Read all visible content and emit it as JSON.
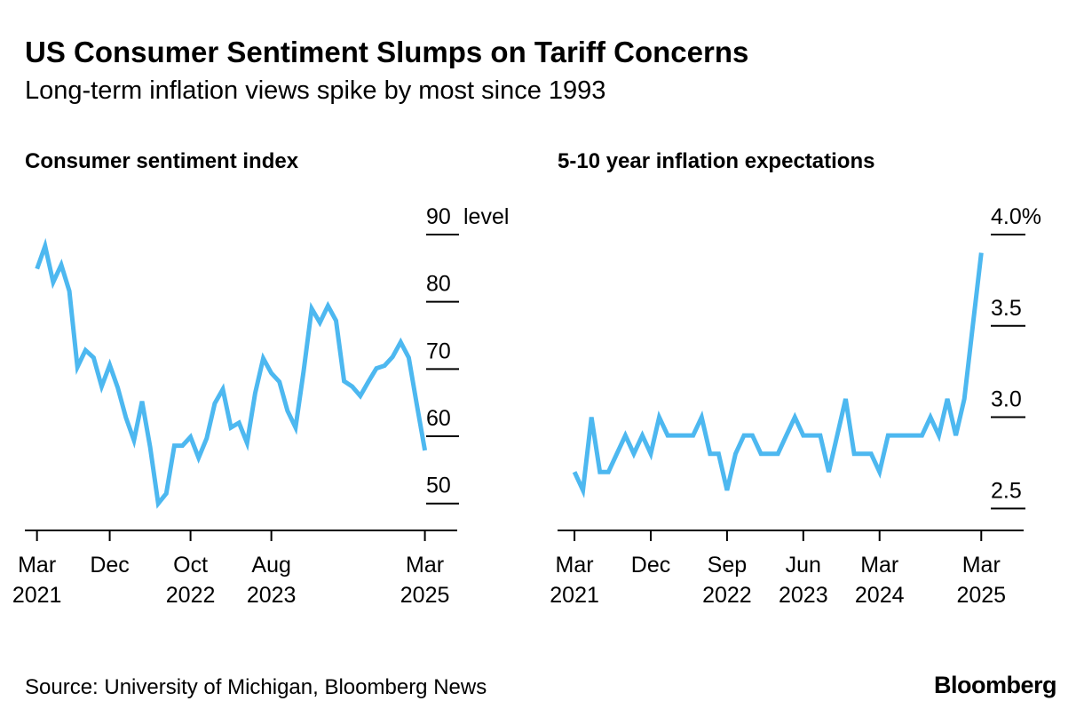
{
  "header": {
    "title": "US Consumer Sentiment Slumps on Tariff Concerns",
    "subtitle": "Long-term inflation views spike by most since 1993"
  },
  "footer": {
    "source": "Source: University of Michigan, Bloomberg News",
    "brand": "Bloomberg"
  },
  "colors": {
    "line": "#4db8f0",
    "axis": "#000000"
  },
  "chart_data": [
    {
      "type": "line",
      "title": "Consumer sentiment index",
      "ylabel": "level",
      "ylim": [
        46,
        90
      ],
      "yticks": [
        {
          "value": 90,
          "label": "90"
        },
        {
          "value": 80,
          "label": "80"
        },
        {
          "value": 70,
          "label": "70"
        },
        {
          "value": 60,
          "label": "60"
        },
        {
          "value": 50,
          "label": "50"
        }
      ],
      "xlim": [
        -1.5,
        52
      ],
      "xticks": [
        {
          "value": 0,
          "label": [
            "Mar",
            "2021"
          ]
        },
        {
          "value": 9,
          "label": [
            "Dec",
            ""
          ]
        },
        {
          "value": 19,
          "label": [
            "Oct",
            "2022"
          ]
        },
        {
          "value": 29,
          "label": [
            "Aug",
            "2023"
          ]
        },
        {
          "value": 48,
          "label": [
            "Mar",
            "2025"
          ]
        }
      ],
      "series": [
        {
          "name": "Consumer sentiment",
          "x": [
            0,
            1,
            2,
            3,
            4,
            5,
            6,
            7,
            8,
            9,
            10,
            11,
            12,
            13,
            14,
            15,
            16,
            17,
            18,
            19,
            20,
            21,
            22,
            23,
            24,
            25,
            26,
            27,
            28,
            29,
            30,
            31,
            32,
            33,
            34,
            35,
            36,
            37,
            38,
            39,
            40,
            41,
            42,
            43,
            44,
            45,
            46,
            47,
            48
          ],
          "values": [
            84.9,
            88.3,
            82.9,
            85.5,
            81.6,
            70.3,
            72.8,
            71.7,
            67.4,
            70.6,
            67.2,
            62.8,
            59.4,
            65.2,
            58.4,
            50.0,
            51.5,
            58.6,
            58.6,
            59.9,
            56.8,
            59.7,
            64.9,
            67.0,
            61.3,
            62.0,
            59.0,
            66.4,
            71.6,
            69.4,
            68.1,
            63.8,
            61.3,
            69.7,
            79.0,
            76.9,
            79.4,
            77.2,
            68.2,
            67.4,
            66.0,
            68.1,
            70.1,
            70.5,
            71.8,
            74.0,
            71.7,
            64.7,
            57.9
          ]
        }
      ]
    },
    {
      "type": "line",
      "title": "5-10 year inflation expectations",
      "ylabel": "",
      "ylim": [
        2.38,
        4.0
      ],
      "yticks": [
        {
          "value": 4.0,
          "label": "4.0%"
        },
        {
          "value": 3.5,
          "label": "3.5"
        },
        {
          "value": 3.0,
          "label": "3.0"
        },
        {
          "value": 2.5,
          "label": "2.5"
        }
      ],
      "xlim": [
        -2,
        53
      ],
      "xticks": [
        {
          "value": 0,
          "label": [
            "Mar",
            "2021"
          ]
        },
        {
          "value": 9,
          "label": [
            "Dec",
            ""
          ]
        },
        {
          "value": 18,
          "label": [
            "Sep",
            "2022"
          ]
        },
        {
          "value": 27,
          "label": [
            "Jun",
            "2023"
          ]
        },
        {
          "value": 36,
          "label": [
            "Mar",
            "2024"
          ]
        },
        {
          "value": 48,
          "label": [
            "Mar",
            "2025"
          ]
        }
      ],
      "series": [
        {
          "name": "5-10 year inflation expectations",
          "x": [
            0,
            1,
            2,
            3,
            4,
            5,
            6,
            7,
            8,
            9,
            10,
            11,
            12,
            13,
            14,
            15,
            16,
            17,
            18,
            19,
            20,
            21,
            22,
            23,
            24,
            25,
            26,
            27,
            28,
            29,
            30,
            31,
            32,
            33,
            34,
            35,
            36,
            37,
            38,
            39,
            40,
            41,
            42,
            43,
            44,
            45,
            46,
            47,
            48
          ],
          "values": [
            2.7,
            2.6,
            3.0,
            2.7,
            2.7,
            2.8,
            2.9,
            2.8,
            2.9,
            2.8,
            3.0,
            2.9,
            2.9,
            2.9,
            2.9,
            3.0,
            2.8,
            2.8,
            2.6,
            2.8,
            2.9,
            2.9,
            2.8,
            2.8,
            2.8,
            2.9,
            3.0,
            2.9,
            2.9,
            2.9,
            2.7,
            2.9,
            3.1,
            2.8,
            2.8,
            2.8,
            2.7,
            2.9,
            2.9,
            2.9,
            2.9,
            2.9,
            3.0,
            2.9,
            3.1,
            2.9,
            3.1,
            3.5,
            3.9
          ]
        }
      ]
    }
  ]
}
